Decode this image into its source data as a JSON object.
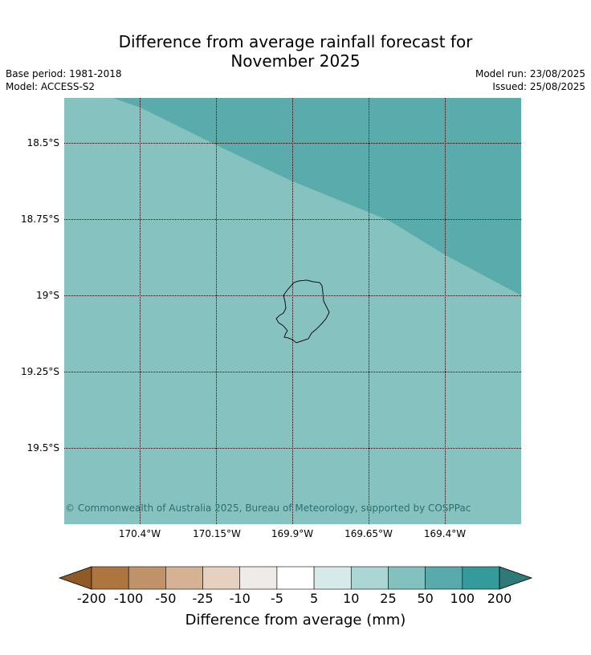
{
  "title": {
    "line1": "Difference from average rainfall forecast for",
    "line2": "November 2025"
  },
  "meta": {
    "base_period": "Base period: 1981-2018",
    "model": "Model: ACCESS-S2",
    "model_run": "Model run: 23/08/2025",
    "issued": "Issued: 25/08/2025"
  },
  "map": {
    "lat_labels": [
      "18.5°S",
      "18.75°S",
      "19°S",
      "19.25°S",
      "19.5°S"
    ],
    "lon_labels": [
      "170.4°W",
      "170.15°W",
      "169.9°W",
      "169.65°W",
      "169.4°W"
    ],
    "lat_range": [
      -19.7,
      -18.35
    ],
    "lon_range": [
      -170.65,
      -169.15
    ],
    "gridlines": true,
    "region_colors": {
      "category_25_50": "#85c2c0",
      "category_50_100": "#5aabab"
    },
    "copyright": "© Commonwealth of Australia 2025, Bureau of Meteorology, supported by COSPPac"
  },
  "colorbar": {
    "ticks": [
      "-200",
      "-100",
      "-50",
      "-25",
      "-10",
      "-5",
      "5",
      "10",
      "25",
      "50",
      "100",
      "200"
    ],
    "colors": [
      "#8f5a26",
      "#ad7640",
      "#c09268",
      "#d4b292",
      "#e6d0c0",
      "#efebe8",
      "#ffffff",
      "#d6eae9",
      "#aad6d4",
      "#83c1bf",
      "#58aaab",
      "#349a9a",
      "#2d7a78"
    ],
    "label": "Difference from average (mm)"
  }
}
